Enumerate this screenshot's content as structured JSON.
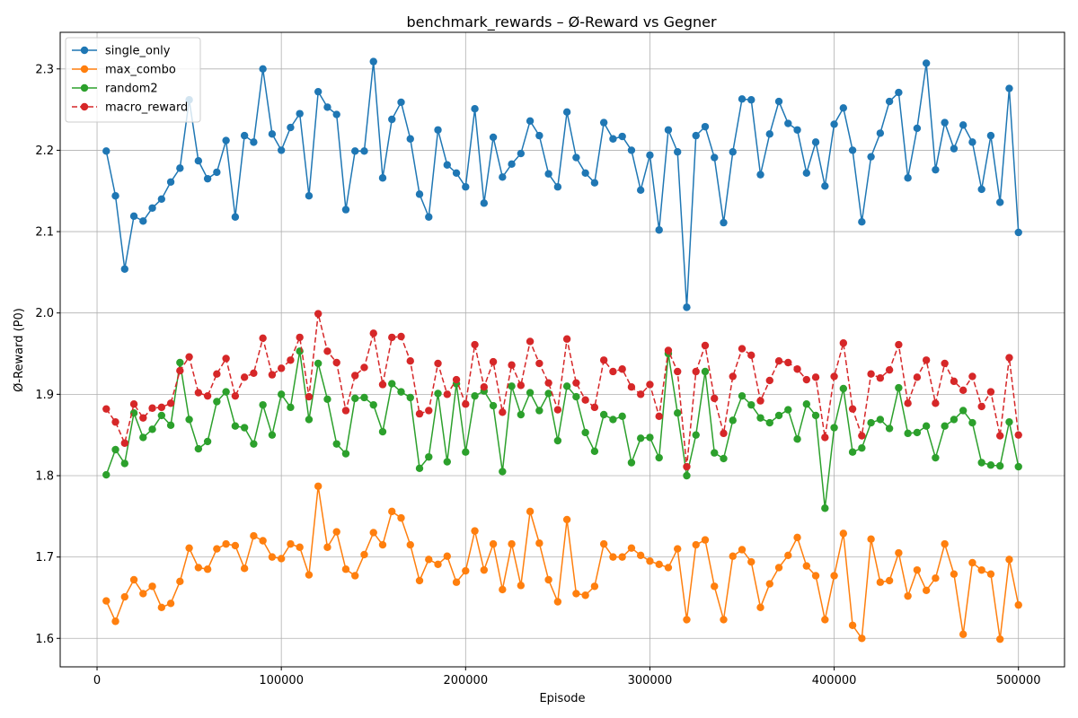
{
  "chart_data": {
    "type": "line",
    "title": "benchmark_rewards – Ø-Reward vs Gegner",
    "xlabel": "Episode",
    "ylabel": "Ø-Reward (P0)",
    "xlim": [
      -20000,
      525000
    ],
    "ylim": [
      1.565,
      2.345
    ],
    "grid": true,
    "legend_placement": "top-left",
    "x_ticks": [
      0,
      100000,
      200000,
      300000,
      400000,
      500000
    ],
    "x_tick_labels": [
      "0",
      "100000",
      "200000",
      "300000",
      "400000",
      "500000"
    ],
    "y_ticks": [
      1.6,
      1.7,
      1.8,
      1.9,
      2.0,
      2.1,
      2.2,
      2.3
    ],
    "y_tick_labels": [
      "1.6",
      "1.7",
      "1.8",
      "1.9",
      "2.0",
      "2.1",
      "2.2",
      "2.3"
    ],
    "x": [
      5000,
      10000,
      15000,
      20000,
      25000,
      30000,
      35000,
      40000,
      45000,
      50000,
      55000,
      60000,
      65000,
      70000,
      75000,
      80000,
      85000,
      90000,
      95000,
      100000,
      105000,
      110000,
      115000,
      120000,
      125000,
      130000,
      135000,
      140000,
      145000,
      150000,
      155000,
      160000,
      165000,
      170000,
      175000,
      180000,
      185000,
      190000,
      195000,
      200000,
      205000,
      210000,
      215000,
      220000,
      225000,
      230000,
      235000,
      240000,
      245000,
      250000,
      255000,
      260000,
      265000,
      270000,
      275000,
      280000,
      285000,
      290000,
      295000,
      300000,
      305000,
      310000,
      315000,
      320000,
      325000,
      330000,
      335000,
      340000,
      345000,
      350000,
      355000,
      360000,
      365000,
      370000,
      375000,
      380000,
      385000,
      390000,
      395000,
      400000,
      405000,
      410000,
      415000,
      420000,
      425000,
      430000,
      435000,
      440000,
      445000,
      450000,
      455000,
      460000,
      465000,
      470000,
      475000,
      480000,
      485000,
      490000,
      495000,
      500000
    ],
    "series": [
      {
        "name": "single_only",
        "color": "#1f77b4",
        "dashed": false,
        "values": [
          2.199,
          2.144,
          2.054,
          2.119,
          2.113,
          2.129,
          2.14,
          2.161,
          2.178,
          2.262,
          2.187,
          2.165,
          2.173,
          2.212,
          2.118,
          2.218,
          2.21,
          2.3,
          2.22,
          2.2,
          2.228,
          2.245,
          2.144,
          2.272,
          2.253,
          2.244,
          2.127,
          2.199,
          2.199,
          2.309,
          2.166,
          2.238,
          2.259,
          2.214,
          2.146,
          2.118,
          2.225,
          2.182,
          2.172,
          2.155,
          2.251,
          2.135,
          2.216,
          2.167,
          2.183,
          2.196,
          2.236,
          2.218,
          2.171,
          2.155,
          2.247,
          2.191,
          2.172,
          2.16,
          2.234,
          2.214,
          2.217,
          2.2,
          2.151,
          2.194,
          2.102,
          2.225,
          2.198,
          2.007,
          2.218,
          2.229,
          2.191,
          2.111,
          2.198,
          2.263,
          2.262,
          2.17,
          2.22,
          2.26,
          2.233,
          2.225,
          2.172,
          2.21,
          2.156,
          2.232,
          2.252,
          2.2,
          2.112,
          2.192,
          2.221,
          2.26,
          2.271,
          2.166,
          2.227,
          2.307,
          2.176,
          2.234,
          2.202,
          2.231,
          2.21,
          2.152,
          2.218,
          2.136,
          2.276,
          2.099
        ]
      },
      {
        "name": "max_combo",
        "color": "#ff7f0e",
        "dashed": false,
        "values": [
          1.646,
          1.621,
          1.651,
          1.672,
          1.655,
          1.664,
          1.638,
          1.643,
          1.67,
          1.711,
          1.687,
          1.685,
          1.71,
          1.716,
          1.714,
          1.686,
          1.726,
          1.72,
          1.7,
          1.698,
          1.716,
          1.712,
          1.678,
          1.787,
          1.712,
          1.731,
          1.685,
          1.677,
          1.703,
          1.73,
          1.715,
          1.756,
          1.748,
          1.715,
          1.671,
          1.697,
          1.691,
          1.701,
          1.669,
          1.683,
          1.732,
          1.684,
          1.716,
          1.66,
          1.716,
          1.665,
          1.756,
          1.717,
          1.672,
          1.645,
          1.746,
          1.655,
          1.653,
          1.664,
          1.716,
          1.7,
          1.7,
          1.711,
          1.702,
          1.695,
          1.691,
          1.687,
          1.71,
          1.623,
          1.715,
          1.721,
          1.664,
          1.623,
          1.701,
          1.709,
          1.694,
          1.638,
          1.667,
          1.687,
          1.702,
          1.724,
          1.689,
          1.677,
          1.623,
          1.677,
          1.729,
          1.616,
          1.6,
          1.722,
          1.669,
          1.671,
          1.705,
          1.652,
          1.684,
          1.659,
          1.674,
          1.716,
          1.679,
          1.605,
          1.693,
          1.684,
          1.679,
          1.599,
          1.697,
          1.641
        ]
      },
      {
        "name": "random2",
        "color": "#2ca02c",
        "dashed": false,
        "values": [
          1.801,
          1.832,
          1.815,
          1.877,
          1.847,
          1.857,
          1.874,
          1.862,
          1.939,
          1.869,
          1.833,
          1.842,
          1.891,
          1.903,
          1.861,
          1.859,
          1.839,
          1.887,
          1.85,
          1.9,
          1.884,
          1.953,
          1.869,
          1.938,
          1.894,
          1.839,
          1.827,
          1.895,
          1.896,
          1.887,
          1.854,
          1.913,
          1.903,
          1.896,
          1.809,
          1.823,
          1.901,
          1.817,
          1.913,
          1.829,
          1.898,
          1.904,
          1.886,
          1.805,
          1.91,
          1.875,
          1.902,
          1.88,
          1.901,
          1.843,
          1.91,
          1.897,
          1.853,
          1.83,
          1.875,
          1.869,
          1.873,
          1.816,
          1.846,
          1.847,
          1.822,
          1.95,
          1.877,
          1.8,
          1.85,
          1.928,
          1.828,
          1.821,
          1.868,
          1.898,
          1.887,
          1.871,
          1.865,
          1.874,
          1.881,
          1.845,
          1.888,
          1.874,
          1.76,
          1.859,
          1.907,
          1.829,
          1.834,
          1.865,
          1.869,
          1.858,
          1.908,
          1.852,
          1.853,
          1.861,
          1.822,
          1.861,
          1.869,
          1.88,
          1.865,
          1.816,
          1.813,
          1.812,
          1.866,
          1.811
        ]
      },
      {
        "name": "macro_reward",
        "color": "#d62728",
        "dashed": true,
        "values": [
          1.882,
          1.866,
          1.84,
          1.888,
          1.871,
          1.883,
          1.884,
          1.889,
          1.929,
          1.946,
          1.902,
          1.898,
          1.925,
          1.944,
          1.898,
          1.921,
          1.926,
          1.969,
          1.924,
          1.932,
          1.942,
          1.97,
          1.897,
          1.999,
          1.953,
          1.939,
          1.88,
          1.923,
          1.933,
          1.975,
          1.912,
          1.97,
          1.971,
          1.941,
          1.876,
          1.88,
          1.938,
          1.9,
          1.918,
          1.888,
          1.961,
          1.909,
          1.94,
          1.878,
          1.936,
          1.911,
          1.965,
          1.938,
          1.914,
          1.881,
          1.968,
          1.914,
          1.893,
          1.884,
          1.942,
          1.928,
          1.931,
          1.909,
          1.9,
          1.912,
          1.873,
          1.954,
          1.928,
          1.811,
          1.928,
          1.96,
          1.895,
          1.852,
          1.922,
          1.956,
          1.948,
          1.892,
          1.917,
          1.941,
          1.939,
          1.931,
          1.918,
          1.921,
          1.847,
          1.922,
          1.963,
          1.882,
          1.849,
          1.925,
          1.92,
          1.93,
          1.961,
          1.889,
          1.921,
          1.942,
          1.889,
          1.938,
          1.916,
          1.905,
          1.922,
          1.885,
          1.903,
          1.849,
          1.945,
          1.85
        ]
      }
    ]
  }
}
